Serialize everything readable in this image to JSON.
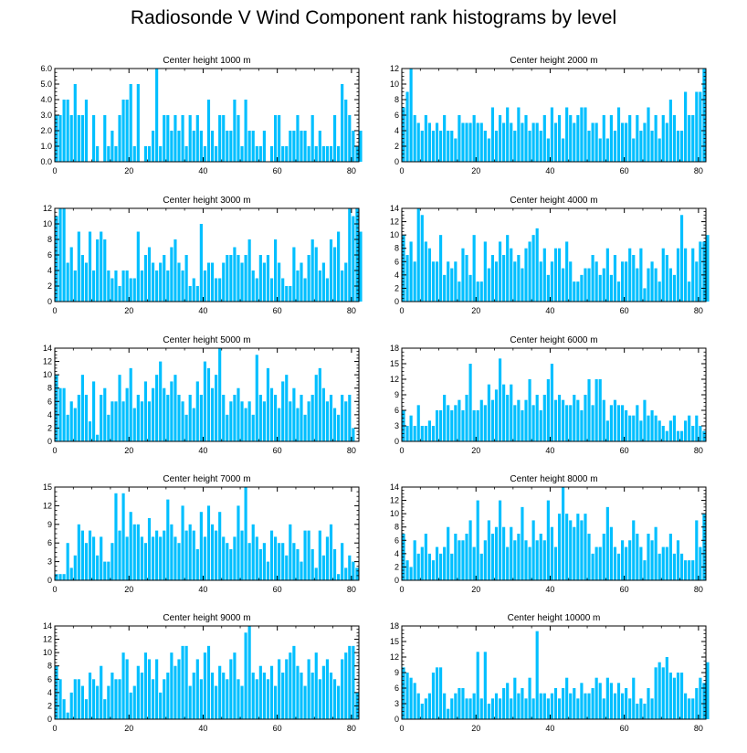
{
  "figure": {
    "title": "Radiosonde V Wind Component rank histograms by level",
    "bar_color": "#00bfff",
    "axis_color": "#000000"
  },
  "chart_data": [
    {
      "type": "bar",
      "title": "Center height 1000 m",
      "x": {
        "min": 0,
        "max": 82,
        "ticks": [
          0,
          20,
          40,
          60,
          80
        ]
      },
      "y": {
        "min": 0,
        "max": 6,
        "ticks": [
          0,
          1,
          2,
          3,
          4,
          5,
          6
        ],
        "tick_labels": [
          "0.0",
          "1.0",
          "2.0",
          "3.0",
          "4.0",
          "5.0",
          "6.0"
        ]
      },
      "values": [
        3,
        3,
        4,
        4,
        3,
        5,
        3,
        3,
        4,
        0,
        3,
        1,
        0,
        3,
        1,
        2,
        1,
        3,
        4,
        4,
        5,
        1,
        5,
        0,
        1,
        1,
        2,
        6,
        1,
        3,
        3,
        2,
        3,
        2,
        3,
        1,
        3,
        2,
        3,
        2,
        1,
        4,
        2,
        1,
        3,
        3,
        2,
        2,
        4,
        3,
        1,
        4,
        2,
        2,
        1,
        1,
        2,
        0,
        1,
        3,
        3,
        1,
        1,
        2,
        2,
        3,
        2,
        2,
        1,
        3,
        1,
        2,
        1,
        1,
        1,
        3,
        1,
        5,
        4,
        3,
        2,
        1,
        2
      ]
    },
    {
      "type": "bar",
      "title": "Center height 2000 m",
      "x": {
        "min": 0,
        "max": 82,
        "ticks": [
          0,
          20,
          40,
          60,
          80
        ]
      },
      "y": {
        "min": 0,
        "max": 12,
        "ticks": [
          0,
          2,
          4,
          6,
          8,
          10,
          12
        ],
        "tick_labels": [
          "0",
          "2",
          "4",
          "6",
          "8",
          "10",
          "12"
        ]
      },
      "values": [
        7,
        9,
        12,
        6,
        5,
        4,
        6,
        5,
        4,
        5,
        4,
        6,
        4,
        4,
        3,
        6,
        5,
        5,
        5,
        6,
        5,
        5,
        4,
        3,
        7,
        4,
        6,
        5,
        7,
        5,
        4,
        7,
        5,
        6,
        4,
        5,
        5,
        4,
        6,
        3,
        7,
        5,
        6,
        3,
        7,
        6,
        5,
        6,
        7,
        7,
        4,
        5,
        5,
        3,
        6,
        3,
        6,
        4,
        7,
        5,
        5,
        6,
        3,
        6,
        4,
        5,
        7,
        4,
        6,
        3,
        6,
        5,
        8,
        6,
        4,
        4,
        9,
        6,
        6,
        9,
        9,
        12
      ]
    },
    {
      "type": "bar",
      "title": "Center height 3000 m",
      "x": {
        "min": 0,
        "max": 82,
        "ticks": [
          0,
          20,
          40,
          60,
          80
        ]
      },
      "y": {
        "min": 0,
        "max": 12,
        "ticks": [
          0,
          2,
          4,
          6,
          8,
          10,
          12
        ],
        "tick_labels": [
          "0",
          "2",
          "4",
          "6",
          "8",
          "10",
          "12"
        ]
      },
      "values": [
        11,
        12,
        12,
        5,
        7,
        4,
        9,
        6,
        5,
        9,
        4,
        8,
        9,
        8,
        4,
        3,
        4,
        2,
        4,
        4,
        3,
        3,
        9,
        4,
        6,
        7,
        5,
        4,
        5,
        6,
        4,
        7,
        8,
        5,
        4,
        6,
        2,
        3,
        2,
        10,
        4,
        5,
        5,
        3,
        3,
        5,
        6,
        6,
        7,
        6,
        5,
        6,
        8,
        4,
        3,
        6,
        5,
        6,
        3,
        8,
        5,
        3,
        2,
        2,
        7,
        4,
        5,
        3,
        6,
        8,
        7,
        4,
        5,
        3,
        8,
        7,
        9,
        4,
        5,
        12,
        11,
        12,
        9
      ]
    },
    {
      "type": "bar",
      "title": "Center height 4000 m",
      "x": {
        "min": 0,
        "max": 82,
        "ticks": [
          0,
          20,
          40,
          60,
          80
        ]
      },
      "y": {
        "min": 0,
        "max": 14,
        "ticks": [
          0,
          2,
          4,
          6,
          8,
          10,
          12,
          14
        ],
        "tick_labels": [
          "0",
          "2",
          "4",
          "6",
          "8",
          "10",
          "12",
          "14"
        ]
      },
      "values": [
        10,
        7,
        9,
        6,
        14,
        13,
        9,
        8,
        6,
        6,
        10,
        4,
        6,
        5,
        6,
        3,
        8,
        7,
        4,
        10,
        3,
        3,
        9,
        5,
        7,
        6,
        9,
        7,
        10,
        8,
        6,
        7,
        5,
        8,
        9,
        10,
        11,
        6,
        8,
        4,
        6,
        8,
        8,
        5,
        9,
        6,
        3,
        3,
        4,
        5,
        5,
        7,
        6,
        4,
        5,
        8,
        4,
        7,
        3,
        6,
        6,
        8,
        7,
        5,
        8,
        2,
        5,
        6,
        5,
        3,
        8,
        7,
        5,
        4,
        8,
        13,
        8,
        3,
        8,
        6,
        9,
        9,
        10
      ]
    },
    {
      "type": "bar",
      "title": "Center height 5000 m",
      "x": {
        "min": 0,
        "max": 82,
        "ticks": [
          0,
          20,
          40,
          60,
          80
        ]
      },
      "y": {
        "min": 0,
        "max": 14,
        "ticks": [
          0,
          2,
          4,
          6,
          8,
          10,
          12,
          14
        ],
        "tick_labels": [
          "0",
          "2",
          "4",
          "6",
          "8",
          "10",
          "12",
          "14"
        ]
      },
      "values": [
        10,
        8,
        8,
        4,
        6,
        5,
        7,
        10,
        7,
        3,
        9,
        1,
        7,
        8,
        4,
        6,
        6,
        10,
        6,
        8,
        11,
        5,
        7,
        6,
        9,
        6,
        8,
        10,
        12,
        8,
        7,
        9,
        10,
        7,
        6,
        4,
        7,
        5,
        9,
        7,
        12,
        11,
        8,
        10,
        14,
        7,
        4,
        6,
        7,
        8,
        6,
        5,
        6,
        4,
        13,
        7,
        6,
        11,
        8,
        7,
        5,
        9,
        10,
        6,
        8,
        5,
        7,
        4,
        6,
        7,
        10,
        11,
        8,
        6,
        7,
        5,
        4,
        7,
        6,
        7,
        2
      ]
    },
    {
      "type": "bar",
      "title": "Center height 6000 m",
      "x": {
        "min": 0,
        "max": 82,
        "ticks": [
          0,
          20,
          40,
          60,
          80
        ]
      },
      "y": {
        "min": 0,
        "max": 18,
        "ticks": [
          0,
          3,
          6,
          9,
          12,
          15,
          18
        ],
        "tick_labels": [
          "0",
          "3",
          "6",
          "9",
          "12",
          "15",
          "18"
        ]
      },
      "values": [
        6,
        3,
        5,
        3,
        7,
        3,
        3,
        4,
        3,
        6,
        6,
        9,
        7,
        6,
        7,
        8,
        6,
        9,
        15,
        6,
        6,
        8,
        7,
        11,
        8,
        10,
        16,
        11,
        9,
        11,
        7,
        8,
        6,
        8,
        12,
        7,
        9,
        6,
        9,
        12,
        15,
        8,
        9,
        8,
        7,
        7,
        9,
        8,
        6,
        9,
        12,
        7,
        12,
        12,
        8,
        4,
        7,
        8,
        7,
        7,
        6,
        5,
        5,
        7,
        4,
        8,
        5,
        6,
        5,
        4,
        3,
        2,
        4,
        5,
        2,
        2,
        4,
        5,
        3,
        5,
        3,
        2
      ]
    },
    {
      "type": "bar",
      "title": "Center height 7000 m",
      "x": {
        "min": 0,
        "max": 82,
        "ticks": [
          0,
          20,
          40,
          60,
          80
        ]
      },
      "y": {
        "min": 0,
        "max": 15,
        "ticks": [
          0,
          3,
          6,
          9,
          12,
          15
        ],
        "tick_labels": [
          "0",
          "3",
          "6",
          "9",
          "12",
          "15"
        ]
      },
      "values": [
        1,
        1,
        1,
        6,
        2,
        4,
        9,
        8,
        6,
        8,
        7,
        4,
        7,
        3,
        3,
        6,
        14,
        8,
        14,
        7,
        11,
        9,
        9,
        7,
        6,
        10,
        7,
        8,
        7,
        8,
        13,
        9,
        7,
        6,
        12,
        8,
        9,
        8,
        5,
        11,
        7,
        12,
        9,
        8,
        11,
        7,
        6,
        5,
        7,
        12,
        8,
        15,
        6,
        9,
        7,
        5,
        6,
        3,
        8,
        7,
        6,
        6,
        4,
        9,
        6,
        5,
        3,
        8,
        8,
        5,
        2,
        8,
        4,
        7,
        9,
        5,
        1,
        6,
        2,
        4,
        3,
        2
      ]
    },
    {
      "type": "bar",
      "title": "Center height 8000 m",
      "x": {
        "min": 0,
        "max": 82,
        "ticks": [
          0,
          20,
          40,
          60,
          80
        ]
      },
      "y": {
        "min": 0,
        "max": 14,
        "ticks": [
          0,
          2,
          4,
          6,
          8,
          10,
          12,
          14
        ],
        "tick_labels": [
          "0",
          "2",
          "4",
          "6",
          "8",
          "10",
          "12",
          "14"
        ]
      },
      "values": [
        7,
        3,
        2,
        6,
        4,
        5,
        7,
        4,
        3,
        5,
        4,
        5,
        8,
        4,
        7,
        6,
        6,
        7,
        9,
        5,
        12,
        4,
        6,
        9,
        7,
        8,
        12,
        8,
        5,
        8,
        6,
        7,
        11,
        6,
        5,
        9,
        6,
        7,
        6,
        12,
        8,
        5,
        10,
        14,
        10,
        9,
        8,
        10,
        9,
        10,
        7,
        4,
        5,
        5,
        7,
        11,
        8,
        5,
        4,
        6,
        5,
        6,
        9,
        7,
        5,
        3,
        7,
        6,
        8,
        4,
        5,
        5,
        7,
        4,
        6,
        4,
        3,
        3,
        3,
        9,
        5,
        10
      ]
    },
    {
      "type": "bar",
      "title": "Center height 9000 m",
      "x": {
        "min": 0,
        "max": 82,
        "ticks": [
          0,
          20,
          40,
          60,
          80
        ]
      },
      "y": {
        "min": 0,
        "max": 14,
        "ticks": [
          0,
          2,
          4,
          6,
          8,
          10,
          12,
          14
        ],
        "tick_labels": [
          "0",
          "2",
          "4",
          "6",
          "8",
          "10",
          "12",
          "14"
        ]
      },
      "values": [
        8,
        6,
        3,
        1,
        4,
        6,
        6,
        5,
        3,
        7,
        6,
        5,
        8,
        3,
        5,
        7,
        6,
        6,
        10,
        9,
        4,
        5,
        8,
        7,
        10,
        9,
        6,
        9,
        4,
        6,
        7,
        10,
        8,
        9,
        11,
        11,
        5,
        7,
        9,
        6,
        10,
        11,
        7,
        5,
        8,
        7,
        6,
        9,
        10,
        6,
        5,
        13,
        14,
        7,
        6,
        8,
        7,
        6,
        8,
        5,
        9,
        7,
        9,
        10,
        11,
        8,
        7,
        5,
        9,
        7,
        10,
        6,
        8,
        9,
        7,
        6,
        5,
        9,
        10,
        11,
        11,
        4
      ]
    },
    {
      "type": "bar",
      "title": "Center height 10000 m",
      "x": {
        "min": 0,
        "max": 82,
        "ticks": [
          0,
          20,
          40,
          60,
          80
        ]
      },
      "y": {
        "min": 0,
        "max": 18,
        "ticks": [
          0,
          3,
          6,
          9,
          12,
          15,
          18
        ],
        "tick_labels": [
          "0",
          "3",
          "6",
          "9",
          "12",
          "15",
          "18"
        ]
      },
      "values": [
        10,
        9,
        8,
        7,
        5,
        3,
        4,
        5,
        9,
        10,
        10,
        5,
        2,
        4,
        5,
        6,
        6,
        4,
        4,
        5,
        13,
        4,
        13,
        3,
        4,
        5,
        4,
        6,
        7,
        4,
        8,
        5,
        6,
        4,
        8,
        4,
        17,
        5,
        5,
        4,
        5,
        6,
        4,
        6,
        8,
        5,
        6,
        4,
        7,
        5,
        5,
        6,
        8,
        7,
        4,
        8,
        7,
        5,
        7,
        5,
        6,
        4,
        8,
        3,
        4,
        3,
        6,
        4,
        10,
        11,
        10,
        12,
        9,
        8,
        9,
        9,
        5,
        4,
        4,
        6,
        8,
        7,
        11
      ]
    }
  ]
}
